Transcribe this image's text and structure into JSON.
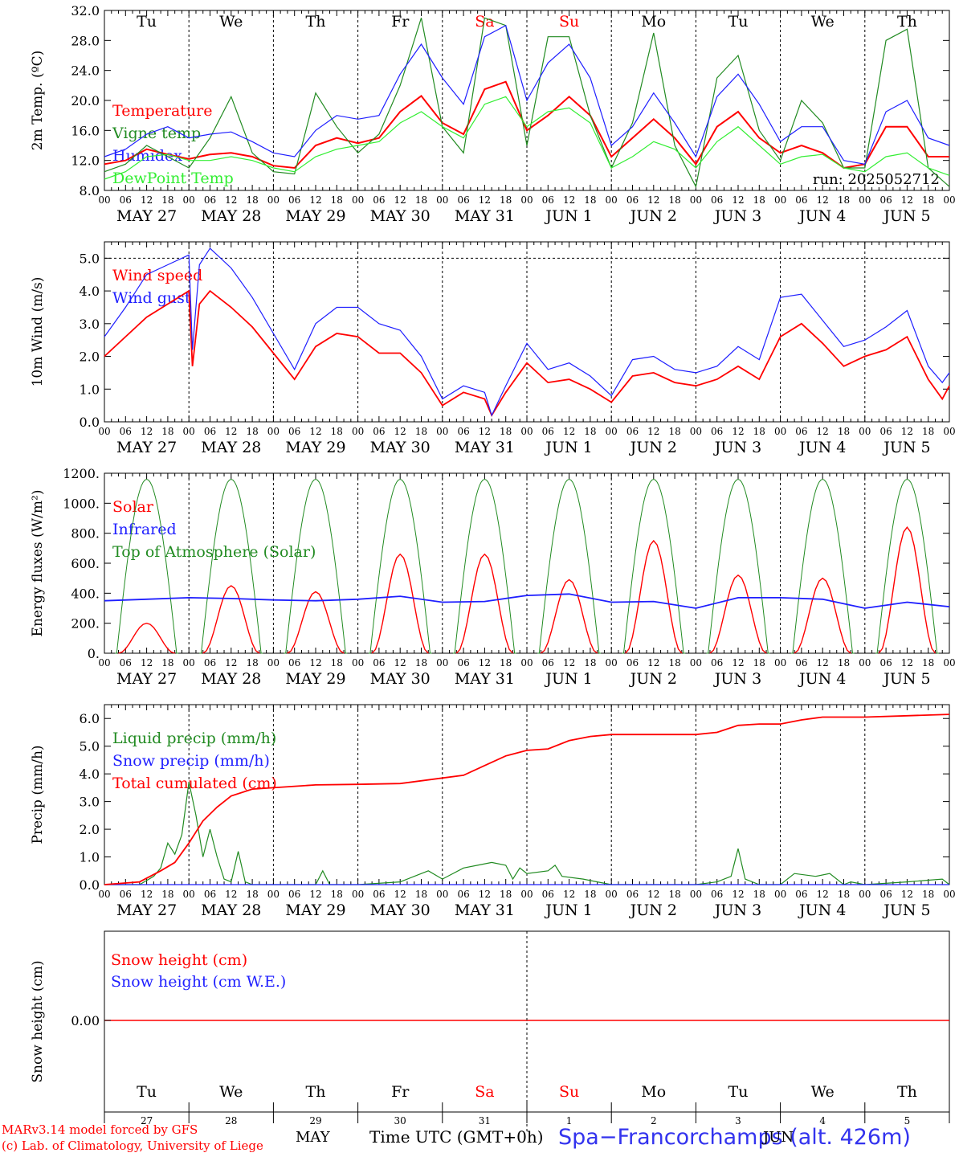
{
  "colors": {
    "red": "#ff0000",
    "green": "#228b22",
    "blue": "#1f1fff",
    "lightgreen": "#33ee33",
    "black": "#000000"
  },
  "footer": {
    "model_line": "MARv3.14 model forced by GFS",
    "lab_line": "(c) Lab. of Climatology, University of Liege",
    "month": "MAY",
    "month2": "JUN",
    "time_axis": "Time UTC (GMT+0h)",
    "station": "Spa−Francorchamps (alt. 426m)"
  },
  "chart_data": [
    {
      "type": "line",
      "ylabel": "2m Temp. (ºC)",
      "ylim": [
        8,
        32
      ],
      "yticks": [
        "8.0",
        "12.0",
        "16.0",
        "20.0",
        "24.0",
        "28.0",
        "32.0"
      ],
      "day_names": [
        "Tu",
        "We",
        "Th",
        "Fr",
        "Sa",
        "Su",
        "Mo",
        "Tu",
        "We",
        "Th"
      ],
      "run_text": "run: 2025052712",
      "x_labels": [
        "00",
        "06",
        "12",
        "18"
      ],
      "date_labels": [
        "MAY 27",
        "MAY 28",
        "MAY 29",
        "MAY 30",
        "MAY 31",
        "JUN 1",
        "JUN 2",
        "JUN 3",
        "JUN 4",
        "JUN 5"
      ],
      "x_unit": "hours from 2025-05-27 00 UTC",
      "series": [
        {
          "name": "Temperature",
          "color": "#ff0000",
          "x": [
            0,
            6,
            12,
            18,
            24,
            30,
            36,
            42,
            48,
            54,
            60,
            66,
            72,
            78,
            84,
            90,
            96,
            102,
            108,
            114,
            120,
            126,
            132,
            138,
            144,
            150,
            156,
            162,
            168,
            174,
            180,
            186,
            192,
            198,
            204,
            210,
            216,
            222,
            228,
            234,
            240
          ],
          "values": [
            11.5,
            12.0,
            13.5,
            12.8,
            12.2,
            12.8,
            13.0,
            12.5,
            11.3,
            11.0,
            14.0,
            15.0,
            14.3,
            15.0,
            18.5,
            20.6,
            17.0,
            15.5,
            21.5,
            22.5,
            16.0,
            18.0,
            20.5,
            18.0,
            12.5,
            15.0,
            17.5,
            15.0,
            11.5,
            16.5,
            18.5,
            15.0,
            13.0,
            14.0,
            13.0,
            11.0,
            11.5,
            16.5,
            16.5,
            12.5,
            12.5
          ]
        },
        {
          "name": "Vigne temp",
          "color": "#228b22",
          "x": [
            0,
            6,
            12,
            18,
            24,
            30,
            36,
            42,
            48,
            54,
            60,
            66,
            72,
            78,
            84,
            90,
            96,
            102,
            108,
            114,
            120,
            126,
            132,
            138,
            144,
            150,
            156,
            162,
            168,
            174,
            180,
            186,
            192,
            198,
            204,
            210,
            216,
            222,
            228,
            234,
            240
          ],
          "values": [
            10.5,
            11.5,
            14.0,
            12.5,
            11.0,
            15.0,
            20.5,
            13.0,
            10.5,
            10.2,
            21.0,
            16.5,
            13.0,
            15.5,
            22.0,
            31.0,
            16.5,
            13.0,
            31.0,
            30.0,
            14.0,
            28.5,
            28.5,
            18.0,
            11.0,
            17.0,
            29.0,
            14.0,
            8.5,
            23.0,
            26.0,
            16.0,
            12.0,
            20.0,
            17.0,
            11.0,
            11.0,
            28.0,
            29.5,
            11.0,
            8.5
          ]
        },
        {
          "name": "Humidex",
          "color": "#1f1fff",
          "x": [
            0,
            6,
            12,
            18,
            24,
            30,
            36,
            42,
            48,
            54,
            60,
            66,
            72,
            78,
            84,
            90,
            96,
            102,
            108,
            114,
            120,
            126,
            132,
            138,
            144,
            150,
            156,
            162,
            168,
            174,
            180,
            186,
            192,
            198,
            204,
            210,
            216,
            222,
            228,
            234,
            240
          ],
          "values": [
            12.5,
            13.5,
            15.5,
            16.5,
            15.0,
            15.5,
            15.8,
            14.5,
            13.0,
            12.5,
            16.0,
            18.0,
            17.5,
            18.0,
            23.5,
            27.5,
            23.0,
            19.5,
            28.5,
            30.0,
            20.0,
            25.0,
            27.5,
            23.0,
            14.0,
            16.5,
            21.0,
            17.0,
            12.5,
            20.5,
            23.5,
            19.5,
            14.5,
            16.5,
            16.5,
            12.0,
            11.5,
            18.5,
            20.0,
            15.0,
            14.0
          ]
        },
        {
          "name": "DewPoint Temp",
          "color": "#33ee33",
          "x": [
            0,
            6,
            12,
            18,
            24,
            30,
            36,
            42,
            48,
            54,
            60,
            66,
            72,
            78,
            84,
            90,
            96,
            102,
            108,
            114,
            120,
            126,
            132,
            138,
            144,
            150,
            156,
            162,
            168,
            174,
            180,
            186,
            192,
            198,
            204,
            210,
            216,
            222,
            228,
            234,
            240
          ],
          "values": [
            9.5,
            10.5,
            12.5,
            12.8,
            12.0,
            12.0,
            12.5,
            12.0,
            11.0,
            10.5,
            12.5,
            13.5,
            14.0,
            14.5,
            17.0,
            18.5,
            16.5,
            15.0,
            19.5,
            20.5,
            16.5,
            18.5,
            19.0,
            17.0,
            11.0,
            12.5,
            14.5,
            13.5,
            11.0,
            14.5,
            16.5,
            14.0,
            11.5,
            12.5,
            12.8,
            11.0,
            10.5,
            12.5,
            13.0,
            11.0,
            10.0
          ]
        }
      ]
    },
    {
      "type": "line",
      "ylabel": "10m Wind (m/s)",
      "ylim": [
        0,
        5.5
      ],
      "yticks": [
        "0.0",
        "1.0",
        "2.0",
        "3.0",
        "4.0",
        "5.0"
      ],
      "series": [
        {
          "name": "Wind speed",
          "color": "#ff0000",
          "x": [
            0,
            6,
            12,
            18,
            24,
            25,
            27,
            30,
            36,
            42,
            48,
            54,
            60,
            66,
            72,
            78,
            84,
            90,
            96,
            102,
            108,
            110,
            114,
            120,
            126,
            132,
            138,
            144,
            150,
            156,
            162,
            168,
            174,
            180,
            186,
            192,
            198,
            204,
            210,
            216,
            222,
            228,
            234,
            238,
            240
          ],
          "values": [
            2.0,
            2.6,
            3.2,
            3.6,
            4.0,
            1.7,
            3.6,
            4.0,
            3.5,
            2.9,
            2.1,
            1.3,
            2.3,
            2.7,
            2.6,
            2.1,
            2.1,
            1.5,
            0.5,
            0.9,
            0.7,
            0.2,
            0.9,
            1.8,
            1.2,
            1.3,
            1.0,
            0.6,
            1.4,
            1.5,
            1.2,
            1.1,
            1.3,
            1.7,
            1.3,
            2.6,
            3.0,
            2.4,
            1.7,
            2.0,
            2.2,
            2.6,
            1.3,
            0.7,
            1.1
          ]
        },
        {
          "name": "Wind gust",
          "color": "#1f1fff",
          "x": [
            0,
            6,
            12,
            18,
            24,
            25,
            27,
            30,
            36,
            42,
            48,
            54,
            60,
            66,
            72,
            78,
            84,
            90,
            96,
            102,
            108,
            110,
            114,
            120,
            126,
            132,
            138,
            144,
            150,
            156,
            162,
            168,
            174,
            180,
            186,
            192,
            198,
            204,
            210,
            216,
            222,
            228,
            234,
            238,
            240
          ],
          "values": [
            2.6,
            3.5,
            4.5,
            4.8,
            5.1,
            2.2,
            4.8,
            5.3,
            4.7,
            3.8,
            2.7,
            1.6,
            3.0,
            3.5,
            3.5,
            3.0,
            2.8,
            2.0,
            0.7,
            1.1,
            0.9,
            0.2,
            1.1,
            2.4,
            1.6,
            1.8,
            1.4,
            0.8,
            1.9,
            2.0,
            1.6,
            1.5,
            1.7,
            2.3,
            1.9,
            3.8,
            3.9,
            3.1,
            2.3,
            2.5,
            2.9,
            3.4,
            1.7,
            1.2,
            1.5
          ]
        }
      ],
      "reference_line": 5.0
    },
    {
      "type": "line",
      "ylabel": "Energy fluxes (W/m²)",
      "ylim": [
        0,
        1200
      ],
      "yticks": [
        "0.",
        "200.",
        "400.",
        "600.",
        "800.",
        "1000.",
        "1200."
      ],
      "series": [
        {
          "name": "Solar",
          "color": "#ff0000",
          "peaks": [
            200,
            450,
            410,
            660,
            660,
            490,
            750,
            520,
            500,
            840
          ]
        },
        {
          "name": "Infrared",
          "color": "#1f1fff",
          "x": [
            0,
            12,
            24,
            36,
            48,
            60,
            72,
            84,
            96,
            108,
            120,
            132,
            144,
            156,
            168,
            180,
            192,
            204,
            216,
            228,
            240
          ],
          "values": [
            350,
            360,
            370,
            365,
            355,
            350,
            360,
            380,
            340,
            345,
            385,
            395,
            340,
            345,
            300,
            370,
            370,
            360,
            300,
            340,
            310
          ]
        },
        {
          "name": "Top of Atmosphere (Solar)",
          "color": "#228b22",
          "peak": 1160
        }
      ]
    },
    {
      "type": "line",
      "ylabel": "Precip (mm/h)",
      "ylim": [
        0,
        6.5
      ],
      "yticks": [
        "0.0",
        "1.0",
        "2.0",
        "3.0",
        "4.0",
        "5.0",
        "6.0"
      ],
      "series": [
        {
          "name": "Liquid precip (mm/h)",
          "color": "#228b22",
          "x": [
            0,
            10,
            14,
            16,
            18,
            20,
            22,
            24,
            26,
            28,
            30,
            32,
            34,
            36,
            38,
            40,
            42,
            44,
            46,
            48,
            60,
            62,
            64,
            72,
            84,
            88,
            92,
            96,
            102,
            106,
            110,
            114,
            116,
            118,
            120,
            126,
            128,
            130,
            136,
            140,
            144,
            168,
            174,
            178,
            180,
            182,
            186,
            192,
            196,
            202,
            206,
            210,
            212,
            216,
            228,
            238,
            240
          ],
          "values": [
            0,
            0,
            0.3,
            0.6,
            1.5,
            1.1,
            1.8,
            3.7,
            2.5,
            1.0,
            2.0,
            1.0,
            0.2,
            0.1,
            1.2,
            0.1,
            0,
            0,
            0,
            0,
            0,
            0.5,
            0,
            0,
            0.1,
            0.3,
            0.5,
            0.2,
            0.6,
            0.7,
            0.8,
            0.7,
            0.2,
            0.6,
            0.4,
            0.5,
            0.7,
            0.3,
            0.2,
            0.1,
            0,
            0,
            0.1,
            0.3,
            1.3,
            0.2,
            0,
            0,
            0.4,
            0.3,
            0.4,
            0,
            0.1,
            0,
            0.1,
            0.2,
            0
          ]
        },
        {
          "name": "Snow precip (mm/h)",
          "color": "#1f1fff",
          "x": [
            0,
            240
          ],
          "values": [
            0,
            0
          ]
        },
        {
          "name": "Total cumulated (cm)",
          "color": "#ff0000",
          "x": [
            0,
            10,
            16,
            20,
            24,
            28,
            32,
            36,
            42,
            48,
            60,
            72,
            84,
            96,
            102,
            108,
            114,
            120,
            126,
            132,
            138,
            144,
            168,
            174,
            180,
            186,
            192,
            198,
            204,
            216,
            228,
            240
          ],
          "values": [
            0,
            0.1,
            0.5,
            0.8,
            1.5,
            2.3,
            2.8,
            3.2,
            3.45,
            3.5,
            3.6,
            3.62,
            3.65,
            3.85,
            3.95,
            4.3,
            4.65,
            4.85,
            4.9,
            5.2,
            5.35,
            5.42,
            5.42,
            5.5,
            5.75,
            5.8,
            5.8,
            5.95,
            6.05,
            6.05,
            6.1,
            6.15
          ]
        }
      ]
    },
    {
      "type": "line",
      "ylabel": "Snow height (cm)",
      "yticks": [
        "0.00"
      ],
      "day_names": [
        "Tu",
        "We",
        "Th",
        "Fr",
        "Sa",
        "Su",
        "Mo",
        "Tu",
        "We",
        "Th"
      ],
      "day_numbers": [
        "27",
        "28",
        "29",
        "30",
        "31",
        "1",
        "2",
        "3",
        "4",
        "5"
      ],
      "series": [
        {
          "name": "Snow height (cm)",
          "color": "#ff0000",
          "x": [
            0,
            240
          ],
          "values": [
            0,
            0
          ]
        },
        {
          "name": "Snow height (cm W.E.)",
          "color": "#1f1fff",
          "x": [
            0,
            240
          ],
          "values": [
            0,
            0
          ]
        }
      ]
    }
  ]
}
